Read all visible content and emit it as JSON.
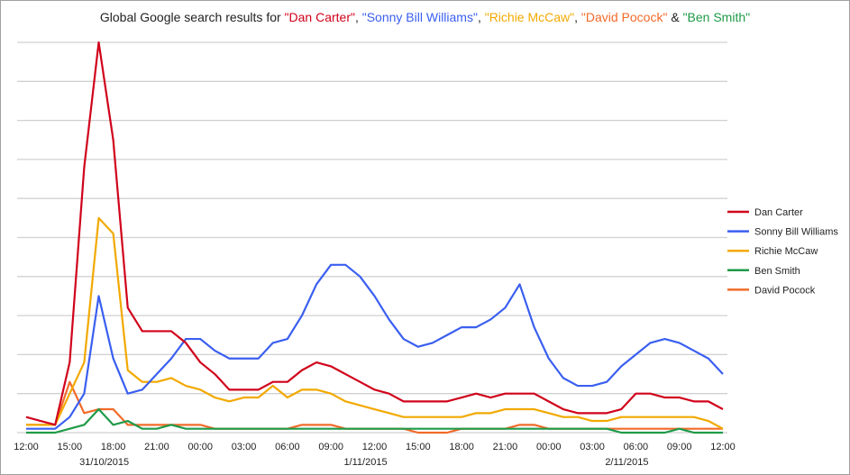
{
  "chart_data": {
    "type": "line",
    "title_parts": [
      {
        "text": "Global Google search results for ",
        "color": "#222222"
      },
      {
        "text": "\"Dan Carter\"",
        "color": "#d0021b"
      },
      {
        "text": ", ",
        "color": "#222222"
      },
      {
        "text": "\"Sonny Bill Williams\"",
        "color": "#3a5ff0"
      },
      {
        "text": ", ",
        "color": "#222222"
      },
      {
        "text": "\"Richie McCaw\"",
        "color": "#f2a900"
      },
      {
        "text": ", ",
        "color": "#222222"
      },
      {
        "text": "\"David Pocock\"",
        "color": "#f26b2a"
      },
      {
        "text": " & ",
        "color": "#222222"
      },
      {
        "text": "\"Ben Smith\"",
        "color": "#1f9a48"
      }
    ],
    "xlabel": "",
    "ylabel": "",
    "ylim": [
      0,
      100
    ],
    "grid": true,
    "legend_position": "right",
    "x_tick_labels": [
      "12:00",
      "15:00",
      "18:00",
      "21:00",
      "00:00",
      "03:00",
      "06:00",
      "09:00",
      "12:00",
      "15:00",
      "18:00",
      "21:00",
      "00:00",
      "03:00",
      "06:00",
      "09:00",
      "12:00"
    ],
    "date_labels": [
      {
        "text": "31/10/2015",
        "tick_index": 2
      },
      {
        "text": "1/11/2015",
        "tick_index": 8
      },
      {
        "text": "2/11/2015",
        "tick_index": 14
      }
    ],
    "x_hours": 48,
    "series": [
      {
        "name": "Dan Carter",
        "color": "#d0021b",
        "values": [
          4,
          3,
          2,
          18,
          68,
          100,
          75,
          32,
          26,
          26,
          26,
          23,
          18,
          15,
          11,
          11,
          11,
          13,
          13,
          16,
          18,
          17,
          15,
          13,
          11,
          10,
          8,
          8,
          8,
          8,
          9,
          10,
          9,
          10,
          10,
          10,
          8,
          6,
          5,
          5,
          5,
          6,
          10,
          10,
          9,
          9,
          8,
          8,
          6
        ]
      },
      {
        "name": "Sonny Bill Williams",
        "color": "#3a5ff0",
        "values": [
          1,
          1,
          1,
          4,
          10,
          35,
          19,
          10,
          11,
          15,
          19,
          24,
          24,
          21,
          19,
          19,
          19,
          23,
          24,
          30,
          38,
          43,
          43,
          40,
          35,
          29,
          24,
          22,
          23,
          25,
          27,
          27,
          29,
          32,
          38,
          27,
          19,
          14,
          12,
          12,
          13,
          17,
          20,
          23,
          24,
          23,
          21,
          19,
          15
        ]
      },
      {
        "name": "Richie McCaw",
        "color": "#f2a900",
        "values": [
          2,
          2,
          2,
          10,
          18,
          55,
          51,
          16,
          13,
          13,
          14,
          12,
          11,
          9,
          8,
          9,
          9,
          12,
          9,
          11,
          11,
          10,
          8,
          7,
          6,
          5,
          4,
          4,
          4,
          4,
          4,
          5,
          5,
          6,
          6,
          6,
          5,
          4,
          4,
          3,
          3,
          4,
          4,
          4,
          4,
          4,
          4,
          3,
          1
        ]
      },
      {
        "name": "Ben Smith",
        "color": "#1f9a48",
        "values": [
          0,
          0,
          0,
          1,
          2,
          6,
          2,
          3,
          1,
          1,
          2,
          1,
          1,
          1,
          1,
          1,
          1,
          1,
          1,
          1,
          1,
          1,
          1,
          1,
          1,
          1,
          1,
          1,
          1,
          1,
          1,
          1,
          1,
          1,
          1,
          1,
          1,
          1,
          1,
          1,
          1,
          0,
          0,
          0,
          0,
          1,
          0,
          0,
          0
        ]
      },
      {
        "name": "David Pocock",
        "color": "#f26b2a",
        "values": [
          2,
          2,
          2,
          13,
          5,
          6,
          6,
          2,
          2,
          2,
          2,
          2,
          2,
          1,
          1,
          1,
          1,
          1,
          1,
          2,
          2,
          2,
          1,
          1,
          1,
          1,
          1,
          0,
          0,
          0,
          1,
          1,
          1,
          1,
          2,
          2,
          1,
          1,
          1,
          1,
          1,
          1,
          1,
          1,
          1,
          1,
          1,
          1,
          1
        ]
      }
    ]
  }
}
